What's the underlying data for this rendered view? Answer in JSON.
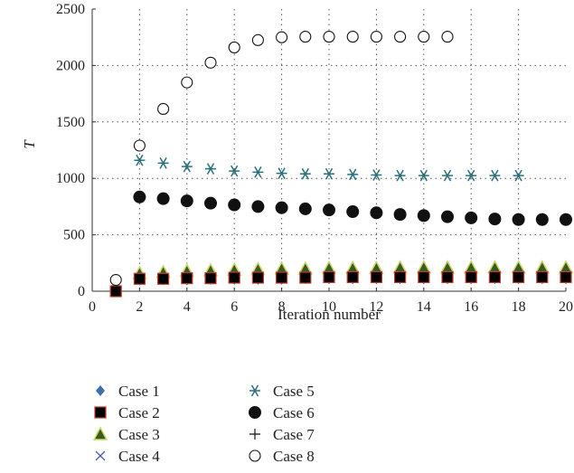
{
  "chart_data": {
    "type": "scatter",
    "xlabel": "Iteration number",
    "ylabel": "T",
    "xlim": [
      0,
      20
    ],
    "ylim": [
      0,
      2500
    ],
    "xticks": [
      0,
      2,
      4,
      6,
      8,
      10,
      12,
      14,
      16,
      18,
      20
    ],
    "yticks": [
      0,
      500,
      1000,
      1500,
      2000,
      2500
    ],
    "grid": "dotted",
    "legend_position": "bottom",
    "series": [
      {
        "name": "Case 1",
        "marker": "diamond",
        "color": "#3b6fb0",
        "x": [
          1,
          2,
          3,
          4,
          5,
          6,
          7,
          8,
          9,
          10,
          11,
          12,
          13,
          14,
          15,
          16,
          17,
          18,
          19,
          20
        ],
        "y": [
          0,
          100,
          100,
          100,
          105,
          105,
          105,
          105,
          110,
          110,
          110,
          110,
          110,
          110,
          110,
          110,
          110,
          110,
          110,
          110
        ]
      },
      {
        "name": "Case 2",
        "marker": "square",
        "color": "#000000",
        "edge": "#c0392b",
        "x": [
          1,
          2,
          3,
          4,
          5,
          6,
          7,
          8,
          9,
          10,
          11,
          12,
          13,
          14,
          15,
          16,
          17,
          18,
          19,
          20
        ],
        "y": [
          0,
          110,
          110,
          115,
          115,
          120,
          120,
          120,
          120,
          125,
          125,
          125,
          125,
          125,
          125,
          125,
          125,
          125,
          125,
          125
        ]
      },
      {
        "name": "Case 3",
        "marker": "triangle",
        "color": "#3a5a1f",
        "edge": "#c8d86a",
        "x": [
          2,
          3,
          4,
          5,
          6,
          7,
          8,
          9,
          10,
          11,
          12,
          13,
          14,
          15,
          16,
          17,
          18,
          19,
          20
        ],
        "y": [
          160,
          170,
          180,
          185,
          190,
          195,
          200,
          200,
          205,
          205,
          205,
          210,
          210,
          210,
          210,
          210,
          210,
          210,
          210
        ]
      },
      {
        "name": "Case 4",
        "marker": "x",
        "color": "#4a5aa8",
        "x": [
          1,
          2,
          3,
          4,
          5,
          6,
          7,
          8,
          9,
          10,
          11,
          12,
          13,
          14,
          15,
          16,
          17,
          18,
          19,
          20
        ],
        "y": [
          0,
          120,
          125,
          130,
          130,
          135,
          135,
          135,
          140,
          140,
          140,
          140,
          140,
          140,
          140,
          140,
          140,
          140,
          140,
          140
        ]
      },
      {
        "name": "Case 5",
        "marker": "asterisk",
        "color": "#2a6f7a",
        "x": [
          2,
          3,
          4,
          5,
          6,
          7,
          8,
          9,
          10,
          11,
          12,
          13,
          14,
          15,
          16,
          17,
          18
        ],
        "y": [
          1160,
          1135,
          1105,
          1085,
          1065,
          1055,
          1045,
          1040,
          1040,
          1035,
          1030,
          1025,
          1025,
          1025,
          1025,
          1025,
          1025
        ]
      },
      {
        "name": "Case 6",
        "marker": "circle-filled",
        "color": "#111111",
        "x": [
          2,
          3,
          4,
          5,
          6,
          7,
          8,
          9,
          10,
          11,
          12,
          13,
          14,
          15,
          16,
          17,
          18,
          19,
          20
        ],
        "y": [
          835,
          820,
          800,
          780,
          765,
          750,
          740,
          730,
          720,
          705,
          695,
          680,
          670,
          660,
          650,
          640,
          635,
          635,
          635
        ]
      },
      {
        "name": "Case 7",
        "marker": "plus",
        "color": "#111111",
        "x": [
          1,
          2,
          3,
          4,
          5,
          6,
          7,
          8,
          9,
          10,
          11,
          12,
          13,
          14,
          15,
          16,
          17,
          18,
          19,
          20
        ],
        "y": [
          0,
          150,
          155,
          160,
          160,
          165,
          165,
          165,
          165,
          165,
          170,
          170,
          170,
          170,
          170,
          170,
          170,
          170,
          170,
          170
        ]
      },
      {
        "name": "Case 8",
        "marker": "circle-open",
        "color": "#111111",
        "x": [
          1,
          2,
          3,
          4,
          5,
          6,
          7,
          8,
          9,
          10,
          11,
          12,
          13,
          14,
          15
        ],
        "y": [
          100,
          1290,
          1615,
          1850,
          2025,
          2160,
          2225,
          2250,
          2255,
          2255,
          2255,
          2255,
          2255,
          2255,
          2255
        ]
      }
    ]
  }
}
